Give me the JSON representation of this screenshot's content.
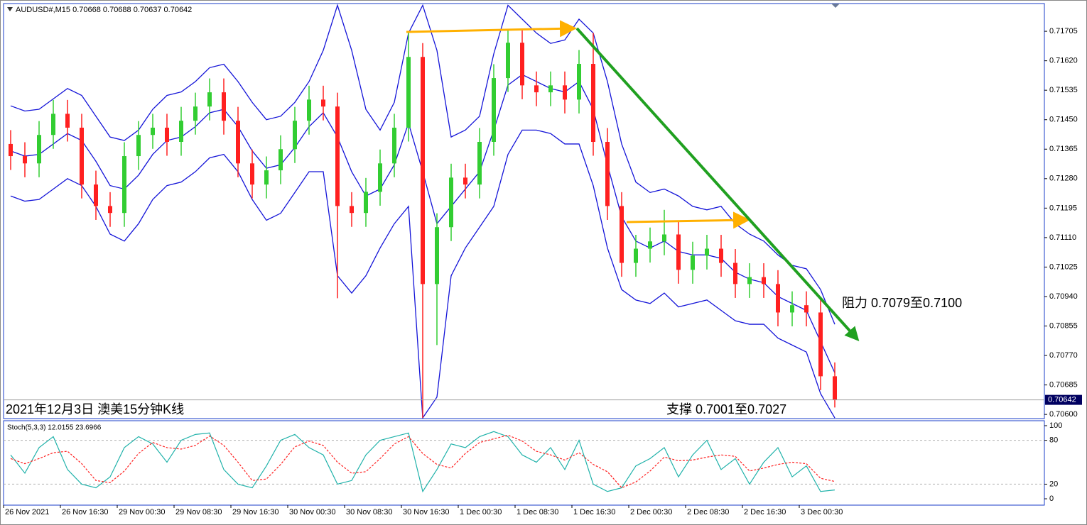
{
  "chart_data": [
    {
      "type": "candlestick",
      "title": "AUDUSD#,M15  0.70668 0.70688 0.70637 0.70642",
      "categories": [
        "26 Nov 2021",
        null,
        null,
        null,
        "26 Nov 16:30",
        null,
        null,
        null,
        "29 Nov 00:30",
        null,
        null,
        null,
        "29 Nov 08:30",
        null,
        null,
        null,
        "29 Nov 16:30",
        null,
        null,
        null,
        "30 Nov 00:30",
        null,
        null,
        null,
        "30 Nov 08:30",
        null,
        null,
        null,
        "30 Nov 16:30",
        null,
        null,
        null,
        "1 Dec 00:30",
        null,
        null,
        null,
        "1 Dec 08:30",
        null,
        null,
        null,
        "1 Dec 16:30",
        null,
        null,
        null,
        "2 Dec 00:30",
        null,
        null,
        null,
        "2 Dec 08:30",
        null,
        null,
        null,
        "2 Dec 16:30",
        null,
        null,
        null,
        "3 Dec 00:30",
        null,
        null
      ],
      "open": [
        0.7138,
        0.71345,
        0.71324,
        0.71406,
        0.71467,
        0.71427,
        0.71263,
        0.71201,
        0.71181,
        0.71345,
        0.71406,
        0.71427,
        0.71386,
        0.71447,
        0.71488,
        0.71529,
        0.71447,
        0.71324,
        0.71263,
        0.71304,
        0.71365,
        0.71447,
        0.71508,
        0.71488,
        0.71201,
        0.71181,
        0.71242,
        0.71324,
        0.71427,
        0.71631,
        0.70976,
        0.7114,
        0.71283,
        0.71263,
        0.71386,
        0.7157,
        0.71672,
        0.71549,
        0.71529,
        0.71549,
        0.71508,
        0.71611,
        0.71386,
        0.71201,
        0.71037,
        0.71078,
        0.71099,
        0.71119,
        0.71017,
        0.71058,
        0.71078,
        0.71037,
        0.70976,
        0.70996,
        0.70976,
        0.70894,
        0.70915,
        0.70894,
        0.7071
      ],
      "high": [
        0.7142,
        0.71385,
        0.71446,
        0.71507,
        0.71507,
        0.71467,
        0.71303,
        0.71241,
        0.71385,
        0.71446,
        0.71467,
        0.71467,
        0.71487,
        0.71528,
        0.71569,
        0.71569,
        0.71487,
        0.71364,
        0.71344,
        0.71405,
        0.71487,
        0.71548,
        0.71548,
        0.71528,
        0.71241,
        0.71282,
        0.71364,
        0.71467,
        0.71705,
        0.71671,
        0.7118,
        0.71323,
        0.71323,
        0.71426,
        0.7161,
        0.71712,
        0.71712,
        0.71589,
        0.71589,
        0.71589,
        0.71651,
        0.717,
        0.71426,
        0.71241,
        0.71118,
        0.71139,
        0.7119,
        0.71159,
        0.71098,
        0.71118,
        0.71118,
        0.71077,
        0.71036,
        0.71036,
        0.71016,
        0.70955,
        0.70955,
        0.70934,
        0.7075
      ],
      "low": [
        0.71305,
        0.71284,
        0.71284,
        0.71366,
        0.71387,
        0.71223,
        0.71161,
        0.71141,
        0.71141,
        0.71305,
        0.71366,
        0.71346,
        0.71346,
        0.71407,
        0.71448,
        0.71407,
        0.71284,
        0.71223,
        0.71223,
        0.71264,
        0.71325,
        0.71407,
        0.71448,
        0.70935,
        0.71141,
        0.71141,
        0.71202,
        0.71284,
        0.71387,
        0.7059,
        0.708,
        0.711,
        0.71223,
        0.71223,
        0.71346,
        0.7153,
        0.71509,
        0.71489,
        0.71489,
        0.71468,
        0.71468,
        0.71346,
        0.71161,
        0.70997,
        0.70997,
        0.71038,
        0.71059,
        0.70977,
        0.70977,
        0.71018,
        0.70997,
        0.70936,
        0.70936,
        0.70936,
        0.70854,
        0.70854,
        0.70854,
        0.7067,
        0.7062
      ],
      "close": [
        0.71345,
        0.71324,
        0.71406,
        0.71467,
        0.71427,
        0.71263,
        0.71201,
        0.71181,
        0.71345,
        0.71406,
        0.71427,
        0.71386,
        0.71447,
        0.71488,
        0.71529,
        0.71447,
        0.71324,
        0.71263,
        0.71304,
        0.71365,
        0.71447,
        0.71508,
        0.71488,
        0.71201,
        0.71181,
        0.71242,
        0.71324,
        0.71427,
        0.71631,
        0.70976,
        0.7114,
        0.71283,
        0.71263,
        0.71386,
        0.7157,
        0.71672,
        0.71549,
        0.71529,
        0.71549,
        0.71508,
        0.71611,
        0.71386,
        0.71201,
        0.71037,
        0.71078,
        0.71099,
        0.71119,
        0.71017,
        0.71058,
        0.71078,
        0.71037,
        0.70976,
        0.70996,
        0.70976,
        0.70894,
        0.70915,
        0.70894,
        0.7071,
        0.70642
      ],
      "bands": {
        "upper": [
          0.7149,
          0.71475,
          0.7148,
          0.7151,
          0.7154,
          0.7152,
          0.7146,
          0.714,
          0.7139,
          0.7142,
          0.7148,
          0.7152,
          0.7153,
          0.7156,
          0.716,
          0.7161,
          0.7156,
          0.715,
          0.7145,
          0.7146,
          0.715,
          0.7156,
          0.7165,
          0.7178,
          0.7165,
          0.7148,
          0.7142,
          0.715,
          0.717,
          0.7178,
          0.7165,
          0.714,
          0.7142,
          0.7146,
          0.7164,
          0.7178,
          0.7174,
          0.717,
          0.7167,
          0.7168,
          0.7174,
          0.717,
          0.7156,
          0.7138,
          0.7127,
          0.7124,
          0.7125,
          0.7123,
          0.712,
          0.7119,
          0.712,
          0.7115,
          0.7112,
          0.711,
          0.7106,
          0.7103,
          0.7102,
          0.7096,
          0.7086
        ],
        "middle": [
          0.7136,
          0.71345,
          0.7135,
          0.7138,
          0.7141,
          0.7139,
          0.7133,
          0.7126,
          0.7125,
          0.7129,
          0.7135,
          0.7139,
          0.714,
          0.7143,
          0.7147,
          0.7148,
          0.7143,
          0.7136,
          0.7131,
          0.7132,
          0.7137,
          0.7143,
          0.7147,
          0.714,
          0.713,
          0.7123,
          0.7125,
          0.7132,
          0.7144,
          0.713,
          0.7115,
          0.712,
          0.7125,
          0.713,
          0.7142,
          0.7155,
          0.7158,
          0.7156,
          0.7154,
          0.7153,
          0.7156,
          0.7148,
          0.7132,
          0.7117,
          0.711,
          0.7108,
          0.711,
          0.7107,
          0.7106,
          0.7106,
          0.7105,
          0.7101,
          0.7099,
          0.7098,
          0.7094,
          0.7092,
          0.709,
          0.7081,
          0.7072
        ],
        "lower": [
          0.7123,
          0.71215,
          0.7122,
          0.7125,
          0.7128,
          0.7126,
          0.712,
          0.7112,
          0.711,
          0.7115,
          0.7122,
          0.7126,
          0.7127,
          0.713,
          0.7134,
          0.7135,
          0.713,
          0.7122,
          0.7116,
          0.7118,
          0.7124,
          0.713,
          0.713,
          0.71,
          0.7095,
          0.71,
          0.7108,
          0.7115,
          0.712,
          0.7059,
          0.7065,
          0.71,
          0.7108,
          0.7114,
          0.712,
          0.7135,
          0.7142,
          0.7142,
          0.7141,
          0.7138,
          0.7138,
          0.7126,
          0.7108,
          0.7096,
          0.7093,
          0.7092,
          0.7095,
          0.7091,
          0.7092,
          0.7093,
          0.709,
          0.7087,
          0.7086,
          0.7086,
          0.7082,
          0.708,
          0.7078,
          0.7066,
          0.7059
        ]
      },
      "colors": {
        "up": "#32cd32",
        "down": "#ff2020",
        "bands": "#1414d8"
      },
      "last_price": 0.70642,
      "ylim": [
        0.70588,
        0.71785
      ],
      "yticks": [
        0.71705,
        {
          "value": 0.7162,
          "label": "0.71620"
        },
        0.71535,
        {
          "value": 0.7145,
          "label": "0.71450"
        },
        0.71365,
        {
          "value": 0.7128,
          "label": "0.71280"
        },
        0.71195,
        {
          "value": 0.7111,
          "label": "0.71110"
        },
        0.71025,
        {
          "value": 0.7094,
          "label": "0.70940"
        },
        0.70855,
        {
          "value": 0.7077,
          "label": "0.70770"
        },
        0.70685,
        {
          "value": 0.706,
          "label": "0.70600"
        }
      ],
      "annotations": [
        "2021年12月3日 澳美15分钟K线",
        "阻力 0.7079至0.7100",
        "支撑 0.7001至0.7027"
      ]
    },
    {
      "type": "line",
      "title": "Stoch(5,3,3) 12.0155 23.6966",
      "series": [
        {
          "color": "#20b2aa",
          "values": [
            60,
            35,
            70,
            85,
            40,
            20,
            15,
            30,
            70,
            85,
            75,
            50,
            80,
            88,
            90,
            40,
            20,
            15,
            45,
            80,
            88,
            70,
            60,
            20,
            25,
            60,
            80,
            85,
            90,
            10,
            40,
            75,
            70,
            85,
            92,
            85,
            60,
            50,
            70,
            40,
            80,
            20,
            10,
            15,
            45,
            55,
            70,
            30,
            60,
            80,
            40,
            55,
            20,
            50,
            70,
            30,
            45,
            10,
            12.0155
          ]
        },
        {
          "color": "#ff2020",
          "values": [
            55,
            48,
            55,
            63,
            65,
            48,
            25,
            22,
            38,
            62,
            77,
            70,
            68,
            73,
            86,
            73,
            50,
            25,
            27,
            47,
            71,
            79,
            73,
            50,
            35,
            37,
            55,
            75,
            85,
            62,
            47,
            42,
            62,
            77,
            82,
            87,
            79,
            65,
            60,
            53,
            63,
            47,
            37,
            15,
            23,
            38,
            57,
            52,
            53,
            57,
            60,
            58,
            38,
            42,
            47,
            50,
            48,
            28,
            23.6966
          ]
        }
      ],
      "levels": [
        20,
        80
      ],
      "ylim": [
        -8.7,
        106.8
      ],
      "yticks": [
        100,
        80,
        20,
        0
      ]
    }
  ]
}
